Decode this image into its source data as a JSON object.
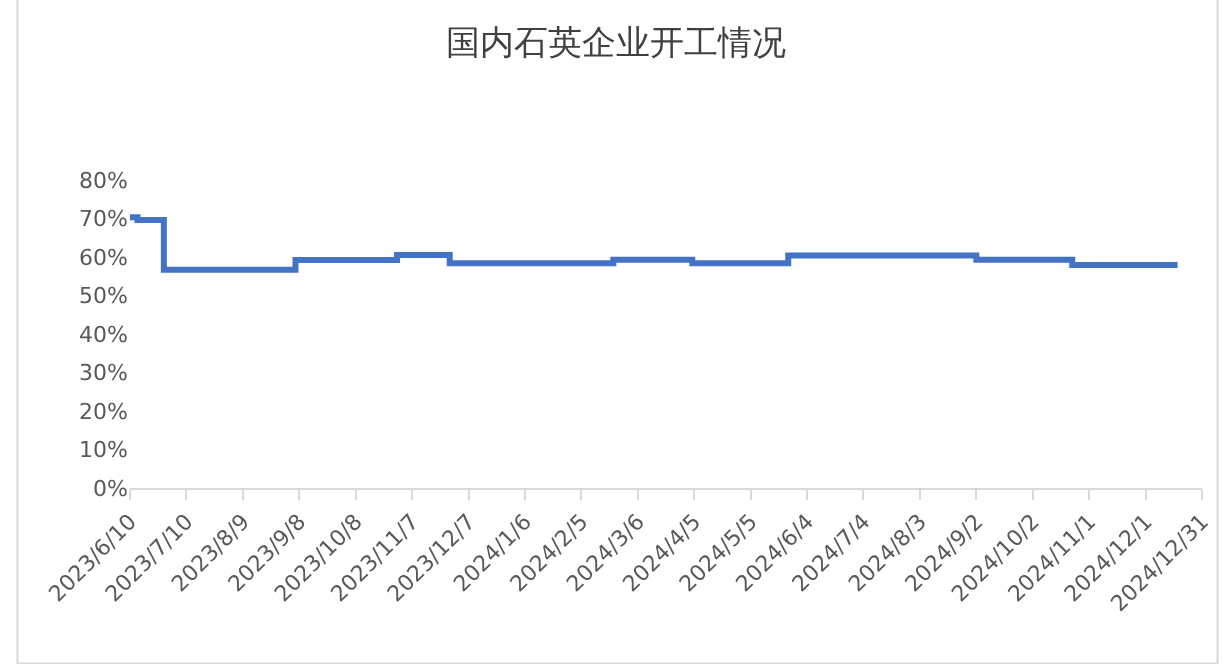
{
  "chart_data": {
    "type": "step",
    "title": "国内石英企业开工情况",
    "x": [
      "2023-06-10",
      "2023-06-14",
      "2023-06-28",
      "2023-09-06",
      "2023-10-30",
      "2023-11-27",
      "2024-02-22",
      "2024-04-04",
      "2024-05-25",
      "2024-09-02",
      "2024-10-23",
      "2024-12-18"
    ],
    "series": [
      {
        "color": "#4472c4",
        "values": [
          70.3,
          69.6,
          56.7,
          59.2,
          60.5,
          58.4,
          59.3,
          58.4,
          60.4,
          59.3,
          57.9,
          57.9
        ]
      }
    ],
    "xlim": [
      "2023-06-10",
      "2024-12-31"
    ],
    "xticks": [
      {
        "value": "2023-06-10",
        "label": "2023/6/10"
      },
      {
        "value": "2023-07-10",
        "label": "2023/7/10"
      },
      {
        "value": "2023-08-09",
        "label": "2023/8/9"
      },
      {
        "value": "2023-09-08",
        "label": "2023/9/8"
      },
      {
        "value": "2023-10-08",
        "label": "2023/10/8"
      },
      {
        "value": "2023-11-07",
        "label": "2023/11/7"
      },
      {
        "value": "2023-12-07",
        "label": "2023/12/7"
      },
      {
        "value": "2024-01-06",
        "label": "2024/1/6"
      },
      {
        "value": "2024-02-05",
        "label": "2024/2/5"
      },
      {
        "value": "2024-03-06",
        "label": "2024/3/6"
      },
      {
        "value": "2024-04-05",
        "label": "2024/4/5"
      },
      {
        "value": "2024-05-05",
        "label": "2024/5/5"
      },
      {
        "value": "2024-06-04",
        "label": "2024/6/4"
      },
      {
        "value": "2024-07-04",
        "label": "2024/7/4"
      },
      {
        "value": "2024-08-03",
        "label": "2024/8/3"
      },
      {
        "value": "2024-09-02",
        "label": "2024/9/2"
      },
      {
        "value": "2024-10-02",
        "label": "2024/10/2"
      },
      {
        "value": "2024-11-01",
        "label": "2024/11/1"
      },
      {
        "value": "2024-12-01",
        "label": "2024/12/1"
      },
      {
        "value": "2024-12-31",
        "label": "2024/12/31"
      }
    ],
    "ylim": [
      0,
      80
    ],
    "yticks": [
      {
        "value": 0,
        "label": "0%"
      },
      {
        "value": 10,
        "label": "10%"
      },
      {
        "value": 20,
        "label": "20%"
      },
      {
        "value": 30,
        "label": "30%"
      },
      {
        "value": 40,
        "label": "40%"
      },
      {
        "value": 50,
        "label": "50%"
      },
      {
        "value": 60,
        "label": "60%"
      },
      {
        "value": 70,
        "label": "70%"
      },
      {
        "value": 80,
        "label": "80%"
      }
    ],
    "marker": "none",
    "line_style": "solid"
  }
}
